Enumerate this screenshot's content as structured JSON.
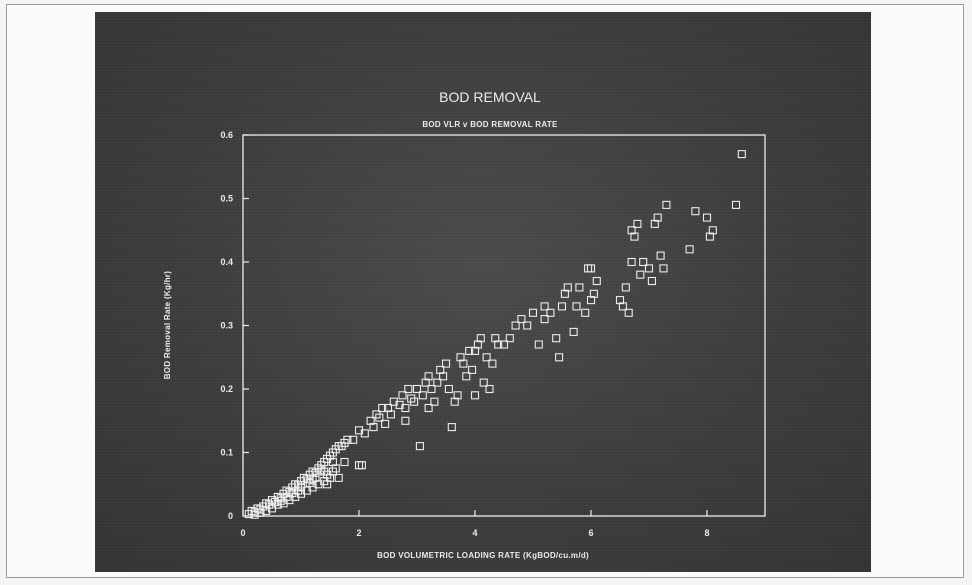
{
  "chart_data": {
    "type": "scatter",
    "title": "BOD REMOVAL",
    "subtitle": "BOD VLR v BOD REMOVAL RATE",
    "xlabel": "BOD VOLUMETRIC LOADING RATE (KgBOD/cu.m/d)",
    "ylabel": "BOD Removal Rate (Kg/hr)",
    "xlim": [
      0,
      9
    ],
    "ylim": [
      0,
      0.6
    ],
    "xticks": [
      "0",
      "2",
      "4",
      "6",
      "8"
    ],
    "yticks": [
      "0",
      "0.1",
      "0.2",
      "0.3",
      "0.4",
      "0.5",
      "0.6"
    ],
    "grid": false,
    "marker": "open-square",
    "colors": {
      "background": "#3c3c3c",
      "foreground": "#ececec"
    },
    "points": [
      [
        0.1,
        0.003
      ],
      [
        0.15,
        0.008
      ],
      [
        0.2,
        0.006
      ],
      [
        0.25,
        0.012
      ],
      [
        0.3,
        0.01
      ],
      [
        0.35,
        0.015
      ],
      [
        0.4,
        0.02
      ],
      [
        0.45,
        0.018
      ],
      [
        0.5,
        0.025
      ],
      [
        0.55,
        0.022
      ],
      [
        0.6,
        0.03
      ],
      [
        0.65,
        0.028
      ],
      [
        0.7,
        0.035
      ],
      [
        0.75,
        0.04
      ],
      [
        0.8,
        0.038
      ],
      [
        0.85,
        0.045
      ],
      [
        0.9,
        0.05
      ],
      [
        0.95,
        0.048
      ],
      [
        1.0,
        0.055
      ],
      [
        1.05,
        0.06
      ],
      [
        1.1,
        0.058
      ],
      [
        1.15,
        0.065
      ],
      [
        1.2,
        0.07
      ],
      [
        1.25,
        0.068
      ],
      [
        1.3,
        0.075
      ],
      [
        1.35,
        0.08
      ],
      [
        1.4,
        0.085
      ],
      [
        1.45,
        0.09
      ],
      [
        1.5,
        0.095
      ],
      [
        1.55,
        0.1
      ],
      [
        1.6,
        0.105
      ],
      [
        1.65,
        0.11
      ],
      [
        0.3,
        0.005
      ],
      [
        0.5,
        0.012
      ],
      [
        0.7,
        0.02
      ],
      [
        0.9,
        0.03
      ],
      [
        1.1,
        0.04
      ],
      [
        1.3,
        0.05
      ],
      [
        1.5,
        0.06
      ],
      [
        0.6,
        0.018
      ],
      [
        0.8,
        0.025
      ],
      [
        1.0,
        0.035
      ],
      [
        1.2,
        0.045
      ],
      [
        1.4,
        0.055
      ],
      [
        0.4,
        0.008
      ],
      [
        0.2,
        0.002
      ],
      [
        1.6,
        0.075
      ],
      [
        1.45,
        0.065
      ],
      [
        0.95,
        0.04
      ],
      [
        0.75,
        0.03
      ],
      [
        1.25,
        0.06
      ],
      [
        1.55,
        0.085
      ],
      [
        1.35,
        0.072
      ],
      [
        1.15,
        0.052
      ],
      [
        0.85,
        0.036
      ],
      [
        0.65,
        0.024
      ],
      [
        1.0,
        0.045
      ],
      [
        1.2,
        0.058
      ],
      [
        1.4,
        0.07
      ],
      [
        1.7,
        0.11
      ],
      [
        1.75,
        0.115
      ],
      [
        1.8,
        0.12
      ],
      [
        1.75,
        0.085
      ],
      [
        1.9,
        0.12
      ],
      [
        2.0,
        0.08
      ],
      [
        2.05,
        0.08
      ],
      [
        1.45,
        0.05
      ],
      [
        1.55,
        0.07
      ],
      [
        1.65,
        0.06
      ],
      [
        2.0,
        0.135
      ],
      [
        2.1,
        0.13
      ],
      [
        2.2,
        0.15
      ],
      [
        2.25,
        0.14
      ],
      [
        2.3,
        0.16
      ],
      [
        2.35,
        0.155
      ],
      [
        2.4,
        0.17
      ],
      [
        2.45,
        0.145
      ],
      [
        2.5,
        0.17
      ],
      [
        2.55,
        0.16
      ],
      [
        2.6,
        0.18
      ],
      [
        2.7,
        0.175
      ],
      [
        2.75,
        0.19
      ],
      [
        2.8,
        0.17
      ],
      [
        2.85,
        0.2
      ],
      [
        2.9,
        0.185
      ],
      [
        2.95,
        0.18
      ],
      [
        3.0,
        0.2
      ],
      [
        3.05,
        0.11
      ],
      [
        3.1,
        0.19
      ],
      [
        3.15,
        0.21
      ],
      [
        3.2,
        0.22
      ],
      [
        3.25,
        0.2
      ],
      [
        3.3,
        0.18
      ],
      [
        3.35,
        0.21
      ],
      [
        3.4,
        0.23
      ],
      [
        3.45,
        0.22
      ],
      [
        3.5,
        0.24
      ],
      [
        3.55,
        0.2
      ],
      [
        3.6,
        0.14
      ],
      [
        3.65,
        0.18
      ],
      [
        3.7,
        0.19
      ],
      [
        3.75,
        0.25
      ],
      [
        3.8,
        0.24
      ],
      [
        3.85,
        0.22
      ],
      [
        3.9,
        0.26
      ],
      [
        3.95,
        0.23
      ],
      [
        4.0,
        0.26
      ],
      [
        4.05,
        0.27
      ],
      [
        4.1,
        0.28
      ],
      [
        4.15,
        0.21
      ],
      [
        4.2,
        0.25
      ],
      [
        4.25,
        0.2
      ],
      [
        4.3,
        0.24
      ],
      [
        4.35,
        0.28
      ],
      [
        4.4,
        0.27
      ],
      [
        4.5,
        0.27
      ],
      [
        4.6,
        0.28
      ],
      [
        4.7,
        0.3
      ],
      [
        4.8,
        0.31
      ],
      [
        4.9,
        0.3
      ],
      [
        5.0,
        0.32
      ],
      [
        5.1,
        0.27
      ],
      [
        5.2,
        0.33
      ],
      [
        5.3,
        0.32
      ],
      [
        5.4,
        0.28
      ],
      [
        5.45,
        0.25
      ],
      [
        5.5,
        0.33
      ],
      [
        5.55,
        0.35
      ],
      [
        5.6,
        0.36
      ],
      [
        5.7,
        0.29
      ],
      [
        5.75,
        0.33
      ],
      [
        5.8,
        0.36
      ],
      [
        5.9,
        0.32
      ],
      [
        5.95,
        0.39
      ],
      [
        6.0,
        0.34
      ],
      [
        6.05,
        0.35
      ],
      [
        6.1,
        0.37
      ],
      [
        6.5,
        0.34
      ],
      [
        6.55,
        0.33
      ],
      [
        6.6,
        0.36
      ],
      [
        6.65,
        0.32
      ],
      [
        6.7,
        0.45
      ],
      [
        6.75,
        0.44
      ],
      [
        6.8,
        0.46
      ],
      [
        6.85,
        0.38
      ],
      [
        6.9,
        0.4
      ],
      [
        7.0,
        0.39
      ],
      [
        7.05,
        0.37
      ],
      [
        7.1,
        0.46
      ],
      [
        7.15,
        0.47
      ],
      [
        7.2,
        0.41
      ],
      [
        7.25,
        0.39
      ],
      [
        7.3,
        0.49
      ],
      [
        7.7,
        0.42
      ],
      [
        7.8,
        0.48
      ],
      [
        8.0,
        0.47
      ],
      [
        8.05,
        0.44
      ],
      [
        8.1,
        0.45
      ],
      [
        8.5,
        0.49
      ],
      [
        8.6,
        0.57
      ],
      [
        6.7,
        0.4
      ],
      [
        6.0,
        0.39
      ],
      [
        5.2,
        0.31
      ],
      [
        4.0,
        0.19
      ],
      [
        3.2,
        0.17
      ],
      [
        2.8,
        0.15
      ]
    ]
  }
}
